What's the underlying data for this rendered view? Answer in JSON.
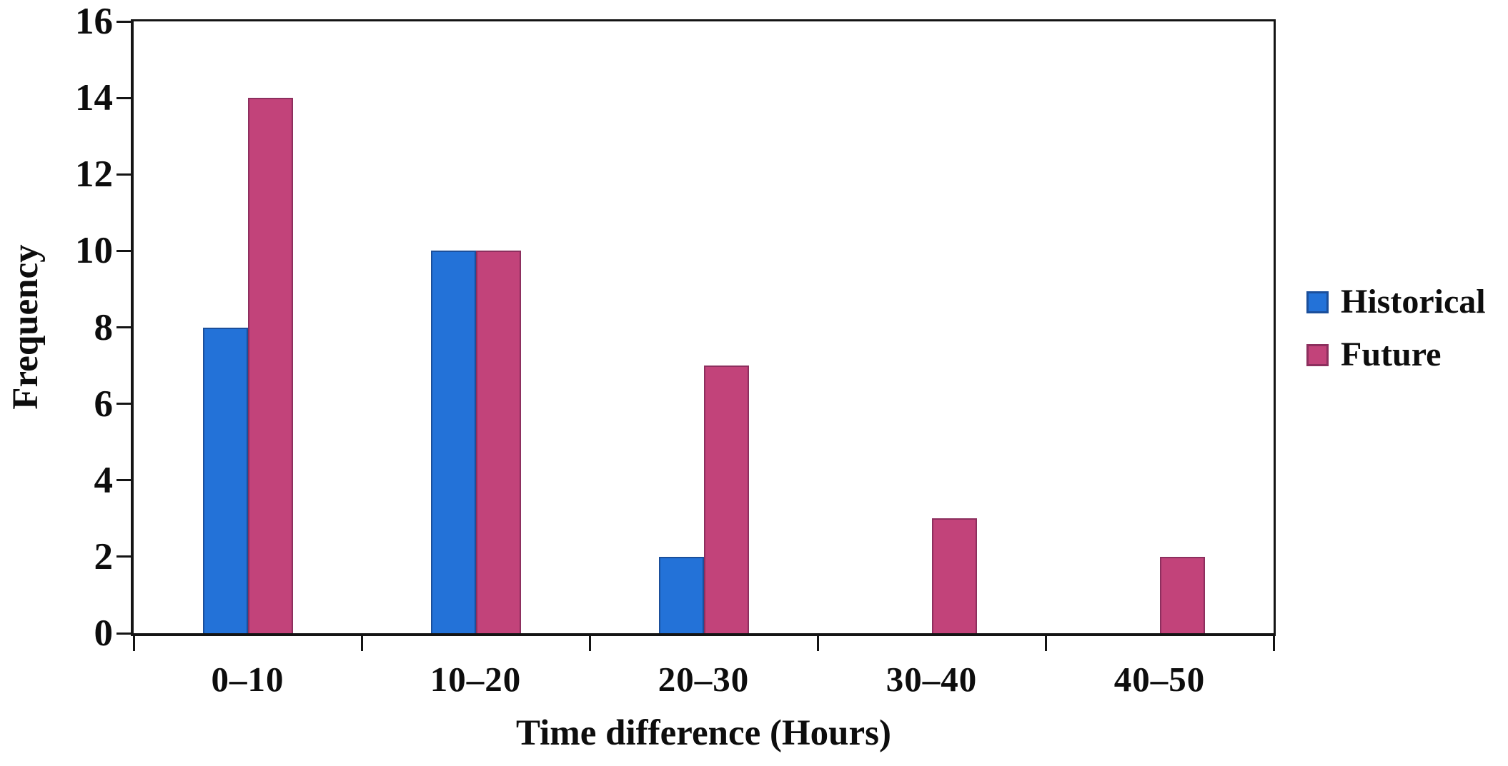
{
  "chart_data": {
    "type": "bar",
    "title": "",
    "categories": [
      "0–10",
      "10–20",
      "20–30",
      "30–40",
      "40–50"
    ],
    "series": [
      {
        "name": "Historical",
        "values": [
          8,
          10,
          2,
          0,
          0
        ],
        "color": "#2372D8",
        "border_color": "#1B4F9B"
      },
      {
        "name": "Future",
        "values": [
          14,
          10,
          7,
          3,
          2
        ],
        "color": "#C2437A",
        "border_color": "#8D2F5E"
      }
    ],
    "xlabel": "Time difference (Hours)",
    "ylabel": "Frequency",
    "ylim": [
      0,
      16
    ],
    "yticks": [
      0,
      2,
      4,
      6,
      8,
      10,
      12,
      14,
      16
    ],
    "grid": false,
    "legend_position": "right",
    "axis_color": "#141414",
    "background_color": "#FFFFFF"
  }
}
